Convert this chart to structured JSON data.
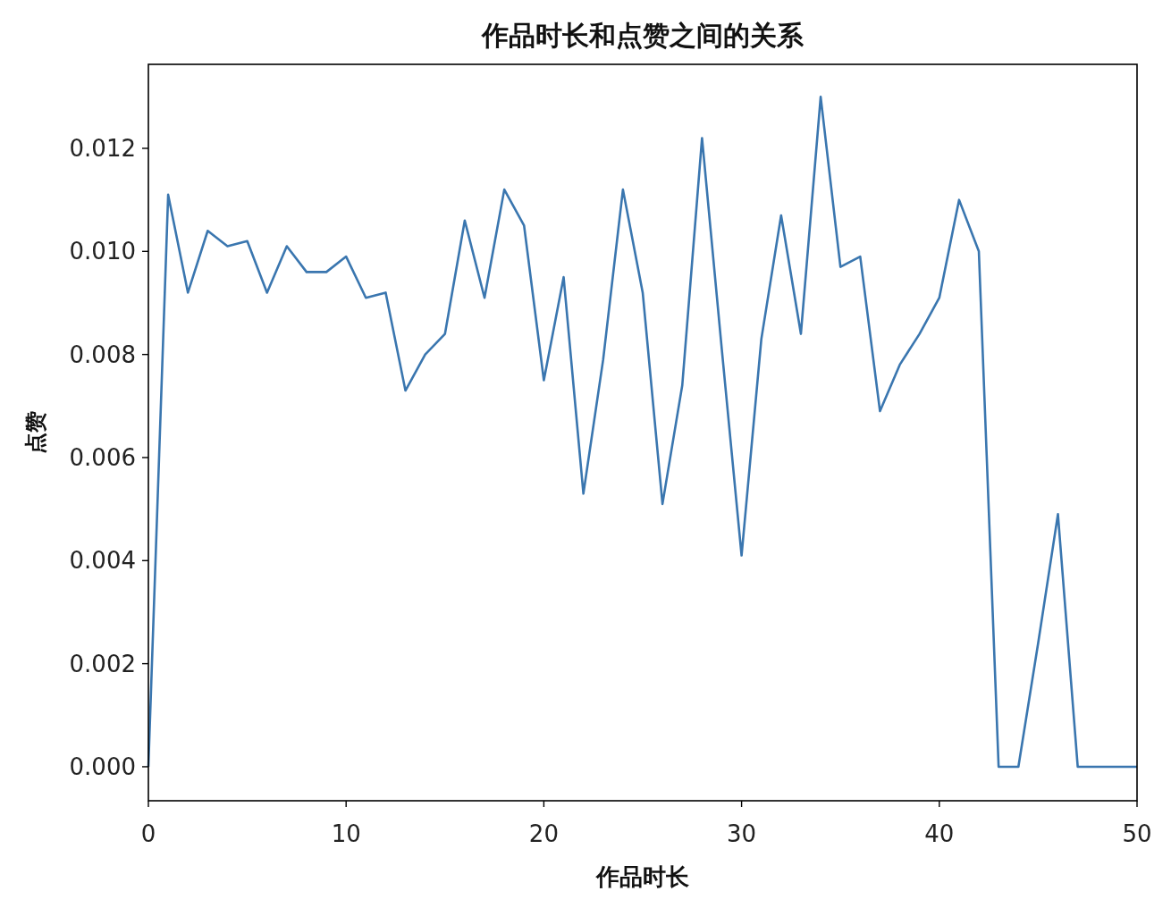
{
  "chart_data": {
    "type": "line",
    "title": "作品时长和点赞之间的关系",
    "xlabel": "作品时长",
    "ylabel": "点赞",
    "x": [
      0,
      1,
      2,
      3,
      4,
      5,
      6,
      7,
      8,
      9,
      10,
      11,
      12,
      13,
      14,
      15,
      16,
      17,
      18,
      19,
      20,
      21,
      22,
      23,
      24,
      25,
      26,
      27,
      28,
      29,
      30,
      31,
      32,
      33,
      34,
      35,
      36,
      37,
      38,
      39,
      40,
      41,
      42,
      43,
      44,
      45,
      46,
      47,
      48,
      49,
      50
    ],
    "series": [
      {
        "color": "#3a76af",
        "values": [
          0,
          0.0111,
          0.0092,
          0.0104,
          0.0101,
          0.0102,
          0.0092,
          0.0101,
          0.0096,
          0.0096,
          0.0099,
          0.0091,
          0.0092,
          0.0073,
          0.008,
          0.0084,
          0.0106,
          0.0091,
          0.0112,
          0.0105,
          0.0075,
          0.0095,
          0.0053,
          0.0079,
          0.0112,
          0.0092,
          0.0051,
          0.0074,
          0.0122,
          0.0081,
          0.0041,
          0.0083,
          0.0107,
          0.0084,
          0.013,
          0.0097,
          0.0099,
          0.0069,
          0.0078,
          0.0084,
          0.0091,
          0.011,
          0.01,
          0,
          0,
          0.0024,
          0.0049,
          0,
          0,
          0,
          0
        ]
      }
    ],
    "xlim": [
      0,
      50
    ],
    "xticks": [
      0,
      10,
      20,
      30,
      40,
      50
    ],
    "ylim": [
      -0.00066,
      0.01363
    ],
    "yticks": [
      {
        "value": 0,
        "label": "0.000"
      },
      {
        "value": 0.002,
        "label": "0.002"
      },
      {
        "value": 0.004,
        "label": "0.004"
      },
      {
        "value": 0.006,
        "label": "0.006"
      },
      {
        "value": 0.008,
        "label": "0.008"
      },
      {
        "value": 0.01,
        "label": "0.010"
      },
      {
        "value": 0.012,
        "label": "0.012"
      }
    ],
    "grid": false,
    "line_style": "solid",
    "marker": "none"
  }
}
